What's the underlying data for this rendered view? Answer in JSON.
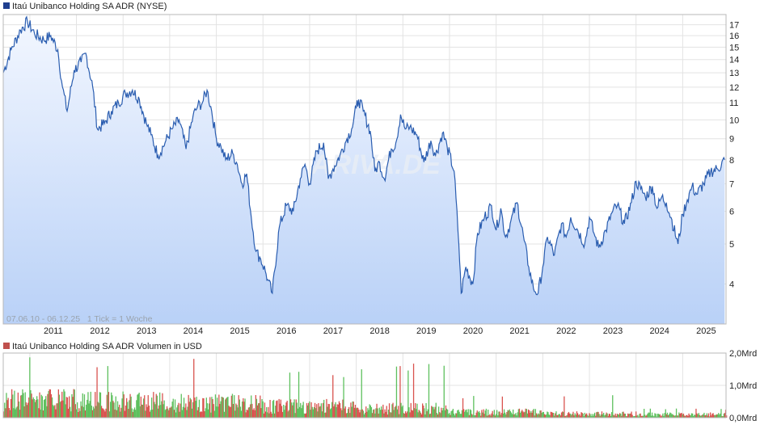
{
  "price_chart": {
    "legend_label": "Itaú Unibanco Holding SA ADR (NYSE)",
    "legend_color": "#1f3f8f",
    "range_note": "07.06.10 - 06.12.25   1 Tick = 1 Woche",
    "watermark": "ARIVA.DE",
    "line_color": "#2a5db0",
    "fill_top_color": "#f3f7ff",
    "fill_bottom_color": "#b9d1f7",
    "y_ticks": [
      "17",
      "16",
      "15",
      "14",
      "13",
      "12",
      "11",
      "10",
      "9",
      "8",
      "7",
      "6",
      "5",
      "4"
    ],
    "x_ticks": [
      "2011",
      "2012",
      "2013",
      "2014",
      "2015",
      "2016",
      "2017",
      "2018",
      "2019",
      "2020",
      "2021",
      "2022",
      "2023",
      "2024",
      "2025"
    ]
  },
  "volume_chart": {
    "legend_label": "Itaú Unibanco Holding SA ADR Volumen in USD",
    "legend_color": "#c0504d",
    "y_ticks": [
      "2,0Mrd",
      "1,0Mrd",
      "0,0Mrd"
    ],
    "up_color": "#5ec05e",
    "down_color": "#d9534f"
  },
  "chart_data": [
    {
      "type": "line",
      "title": "Itaú Unibanco Holding SA ADR (NYSE)",
      "scale": "log",
      "ylim": [
        3.2,
        18
      ],
      "xlim": [
        2010.43,
        2025.93
      ],
      "series": [
        {
          "name": "Itaú Unibanco Holding SA ADR (NYSE)",
          "x": [
            2010.43,
            2010.6,
            2010.8,
            2010.95,
            2011.1,
            2011.3,
            2011.45,
            2011.6,
            2011.7,
            2011.8,
            2011.95,
            2012.1,
            2012.2,
            2012.35,
            2012.45,
            2012.6,
            2012.75,
            2012.9,
            2013.05,
            2013.2,
            2013.35,
            2013.5,
            2013.6,
            2013.75,
            2013.9,
            2014.05,
            2014.2,
            2014.35,
            2014.5,
            2014.6,
            2014.7,
            2014.8,
            2014.9,
            2015.0,
            2015.1,
            2015.2,
            2015.35,
            2015.45,
            2015.55,
            2015.65,
            2015.75,
            2015.85,
            2015.95,
            2016.05,
            2016.1,
            2016.2,
            2016.35,
            2016.5,
            2016.65,
            2016.8,
            2016.9,
            2017.0,
            2017.15,
            2017.3,
            2017.4,
            2017.5,
            2017.65,
            2017.8,
            2017.9,
            2018.0,
            2018.05,
            2018.15,
            2018.3,
            2018.4,
            2018.5,
            2018.6,
            2018.75,
            2018.85,
            2018.95,
            2019.05,
            2019.15,
            2019.3,
            2019.45,
            2019.6,
            2019.7,
            2019.85,
            2019.95,
            2020.1,
            2020.2,
            2020.25,
            2020.35,
            2020.5,
            2020.6,
            2020.75,
            2020.9,
            2021.0,
            2021.1,
            2021.2,
            2021.3,
            2021.45,
            2021.6,
            2021.7,
            2021.8,
            2021.9,
            2022.0,
            2022.1,
            2022.25,
            2022.4,
            2022.5,
            2022.6,
            2022.75,
            2022.9,
            2023.0,
            2023.1,
            2023.2,
            2023.35,
            2023.5,
            2023.6,
            2023.75,
            2023.9,
            2024.0,
            2024.1,
            2024.2,
            2024.35,
            2024.45,
            2024.55,
            2024.65,
            2024.75,
            2024.9,
            2025.0,
            2025.1,
            2025.2,
            2025.3,
            2025.45,
            2025.6,
            2025.75,
            2025.9
          ],
          "y": [
            13.0,
            14.8,
            16.5,
            17.3,
            16.2,
            15.6,
            16.0,
            14.8,
            12.0,
            10.5,
            13.2,
            13.8,
            14.5,
            12.0,
            9.5,
            9.8,
            10.5,
            11.0,
            11.6,
            11.8,
            11.2,
            9.8,
            9.2,
            8.2,
            8.8,
            9.5,
            10.0,
            8.5,
            10.2,
            10.8,
            11.0,
            11.8,
            10.5,
            9.0,
            8.6,
            8.0,
            8.3,
            7.8,
            7.0,
            7.4,
            5.8,
            4.8,
            4.6,
            4.3,
            4.1,
            3.8,
            5.5,
            6.2,
            6.0,
            7.2,
            7.8,
            7.0,
            8.4,
            8.8,
            7.2,
            7.6,
            8.2,
            9.0,
            9.5,
            10.7,
            11.2,
            10.5,
            9.4,
            7.5,
            7.9,
            7.2,
            8.5,
            8.8,
            10.3,
            9.5,
            9.6,
            9.2,
            7.9,
            8.9,
            8.2,
            9.3,
            8.6,
            7.5,
            5.0,
            3.8,
            4.4,
            4.0,
            5.3,
            5.8,
            6.2,
            5.4,
            6.1,
            5.2,
            5.6,
            6.3,
            5.1,
            4.4,
            3.9,
            3.8,
            4.4,
            5.2,
            4.7,
            5.6,
            5.2,
            5.8,
            5.4,
            5.0,
            5.8,
            5.3,
            4.9,
            5.4,
            6.0,
            6.2,
            5.6,
            6.3,
            7.1,
            6.8,
            6.5,
            6.9,
            6.1,
            6.5,
            6.3,
            5.8,
            5.0,
            5.9,
            6.4,
            6.9,
            6.6,
            7.0,
            7.5,
            7.6,
            8.0
          ]
        }
      ]
    },
    {
      "type": "bar",
      "title": "Itaú Unibanco Holding SA ADR Volumen in USD",
      "ylim": [
        0,
        2.0
      ],
      "ylabel": "Mrd",
      "segments": [
        {
          "start": 2010.43,
          "end": 2012.0,
          "avg": 0.55,
          "peak": 2.0
        },
        {
          "start": 2012.0,
          "end": 2014.0,
          "avg": 0.5,
          "peak": 1.9
        },
        {
          "start": 2014.0,
          "end": 2016.0,
          "avg": 0.45,
          "peak": 1.85
        },
        {
          "start": 2016.0,
          "end": 2018.0,
          "avg": 0.35,
          "peak": 1.55
        },
        {
          "start": 2018.0,
          "end": 2020.0,
          "avg": 0.28,
          "peak": 1.8
        },
        {
          "start": 2020.0,
          "end": 2022.0,
          "avg": 0.17,
          "peak": 0.7
        },
        {
          "start": 2022.0,
          "end": 2024.0,
          "avg": 0.12,
          "peak": 0.7
        },
        {
          "start": 2024.0,
          "end": 2025.93,
          "avg": 0.1,
          "peak": 0.3
        }
      ]
    }
  ]
}
